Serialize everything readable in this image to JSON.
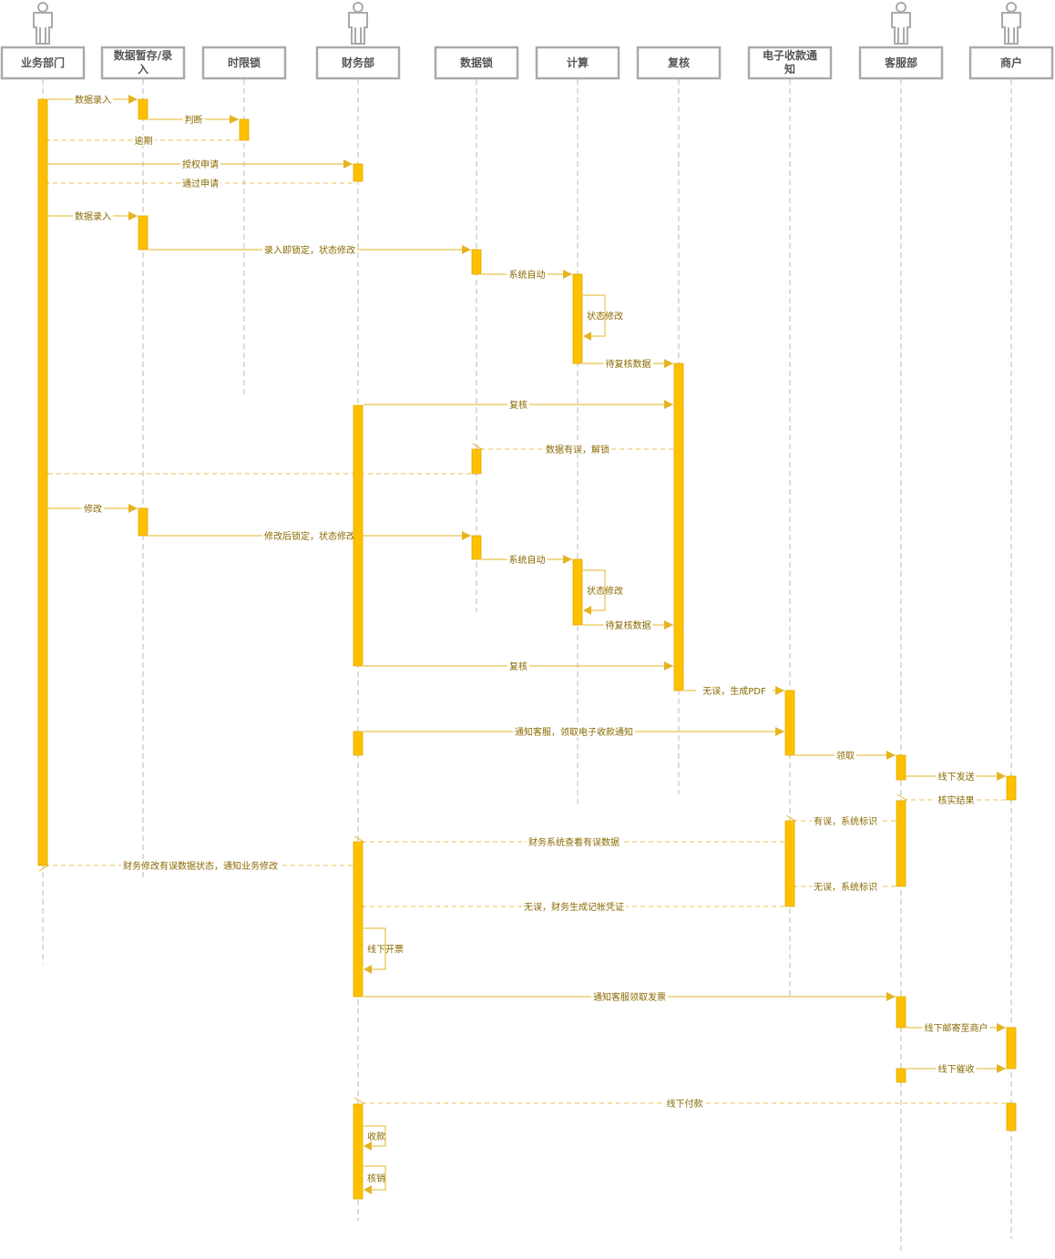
{
  "colors": {
    "accent": "#FFC000",
    "line": "#E6B422",
    "text": "#8a6a00",
    "header_border": "#aaaaaa",
    "header_text": "#555555"
  },
  "participants": [
    {
      "name": "业务部门",
      "actor": true
    },
    {
      "name": "数据暂存/录\n入",
      "actor": false
    },
    {
      "name": "时限锁",
      "actor": false
    },
    {
      "name": "财务部",
      "actor": true
    },
    {
      "name": "数据锁",
      "actor": false
    },
    {
      "name": "计算",
      "actor": false
    },
    {
      "name": "复核",
      "actor": false
    },
    {
      "name": "电子收款通\n知",
      "actor": false
    },
    {
      "name": "客服部",
      "actor": true
    },
    {
      "name": "商户",
      "actor": true
    }
  ],
  "messages": [
    {
      "from": 0,
      "to": 1,
      "label": "数据录入",
      "type": "sync"
    },
    {
      "from": 1,
      "to": 2,
      "label": "判断",
      "type": "sync"
    },
    {
      "from": 2,
      "to": 0,
      "label": "逾期",
      "type": "return"
    },
    {
      "from": 0,
      "to": 3,
      "label": "授权申请",
      "type": "sync"
    },
    {
      "from": 3,
      "to": 0,
      "label": "通过申请",
      "type": "return"
    },
    {
      "from": 0,
      "to": 1,
      "label": "数据录入",
      "type": "sync"
    },
    {
      "from": 1,
      "to": 4,
      "label": "录入即锁定，状态修改",
      "type": "sync"
    },
    {
      "from": 4,
      "to": 5,
      "label": "系统自动",
      "type": "sync"
    },
    {
      "from": 5,
      "to": 5,
      "label": "状态修改",
      "type": "self"
    },
    {
      "from": 5,
      "to": 6,
      "label": "待复核数据",
      "type": "sync"
    },
    {
      "from": 3,
      "to": 6,
      "label": "复核",
      "type": "sync"
    },
    {
      "from": 6,
      "to": 4,
      "label": "数据有误，解锁",
      "type": "return"
    },
    {
      "from": 4,
      "to": 0,
      "label": "",
      "type": "return"
    },
    {
      "from": 0,
      "to": 1,
      "label": "修改",
      "type": "sync"
    },
    {
      "from": 1,
      "to": 4,
      "label": "修改后锁定，状态修改",
      "type": "sync"
    },
    {
      "from": 4,
      "to": 5,
      "label": "系统自动",
      "type": "sync"
    },
    {
      "from": 5,
      "to": 5,
      "label": "状态修改",
      "type": "self"
    },
    {
      "from": 5,
      "to": 6,
      "label": "待复核数据",
      "type": "sync"
    },
    {
      "from": 3,
      "to": 6,
      "label": "复核",
      "type": "sync"
    },
    {
      "from": 6,
      "to": 7,
      "label": "无误，生成PDF",
      "type": "sync"
    },
    {
      "from": 3,
      "to": 7,
      "label": "通知客服，领取电子收款通知",
      "type": "sync"
    },
    {
      "from": 7,
      "to": 8,
      "label": "领取",
      "type": "sync"
    },
    {
      "from": 8,
      "to": 9,
      "label": "线下发送",
      "type": "sync"
    },
    {
      "from": 9,
      "to": 8,
      "label": "核实结果",
      "type": "return"
    },
    {
      "from": 8,
      "to": 7,
      "label": "有误，系统标识",
      "type": "return"
    },
    {
      "from": 7,
      "to": 3,
      "label": "财务系统查看有误数据",
      "type": "return"
    },
    {
      "from": 3,
      "to": 0,
      "label": "财务修改有误数据状态，通知业务修改",
      "type": "return"
    },
    {
      "from": 8,
      "to": 7,
      "label": "无误，系统标识",
      "type": "return"
    },
    {
      "from": 7,
      "to": 3,
      "label": "无误，财务生成记帐凭证",
      "type": "return"
    },
    {
      "from": 3,
      "to": 3,
      "label": "线下开票",
      "type": "self"
    },
    {
      "from": 3,
      "to": 8,
      "label": "通知客服领取发票",
      "type": "sync"
    },
    {
      "from": 8,
      "to": 9,
      "label": "线下邮寄至商户",
      "type": "sync"
    },
    {
      "from": 8,
      "to": 9,
      "label": "线下催收",
      "type": "sync"
    },
    {
      "from": 9,
      "to": 3,
      "label": "线下付款",
      "type": "return"
    },
    {
      "from": 3,
      "to": 3,
      "label": "收款",
      "type": "self"
    },
    {
      "from": 3,
      "to": 3,
      "label": "核销",
      "type": "self"
    }
  ]
}
